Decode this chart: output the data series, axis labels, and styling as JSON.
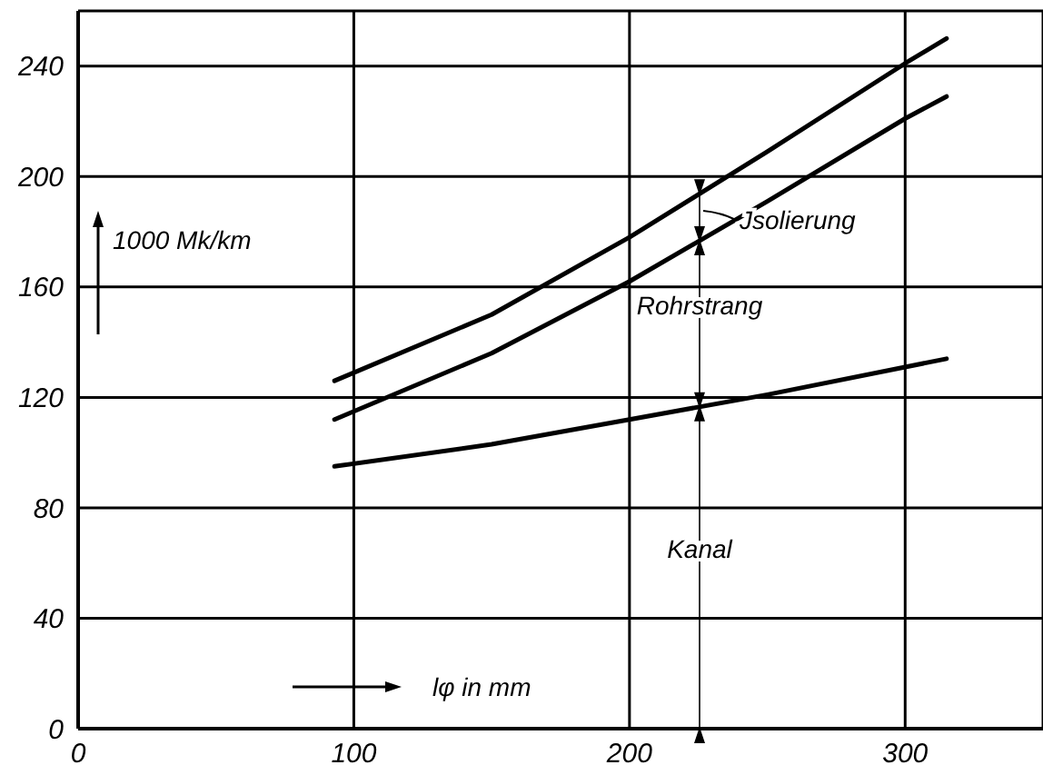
{
  "chart_data": {
    "type": "line",
    "xlabel": "lφ in mm",
    "ylabel": "1000 Mk/km",
    "xlim": [
      0,
      350
    ],
    "xticks": [
      0,
      100,
      200,
      300
    ],
    "ylim": [
      0,
      260
    ],
    "yticks": [
      0,
      40,
      80,
      120,
      160,
      200,
      240
    ],
    "grid": true,
    "marker": "none",
    "line_style": "solid",
    "series": [
      {
        "color": "#000000",
        "x": [
          93,
          150,
          200,
          250,
          300,
          315
        ],
        "values": [
          126,
          150,
          178,
          209,
          241,
          250
        ]
      },
      {
        "color": "#000000",
        "x": [
          93,
          150,
          200,
          250,
          300,
          315
        ],
        "values": [
          112,
          136,
          162,
          191,
          221,
          229
        ]
      },
      {
        "color": "#000000",
        "x": [
          93,
          150,
          200,
          250,
          300,
          315
        ],
        "values": [
          95,
          103,
          112,
          121,
          131,
          134
        ]
      }
    ],
    "annotations": [
      "Jsolierung",
      "Rohrstrang",
      "Kanal"
    ]
  }
}
